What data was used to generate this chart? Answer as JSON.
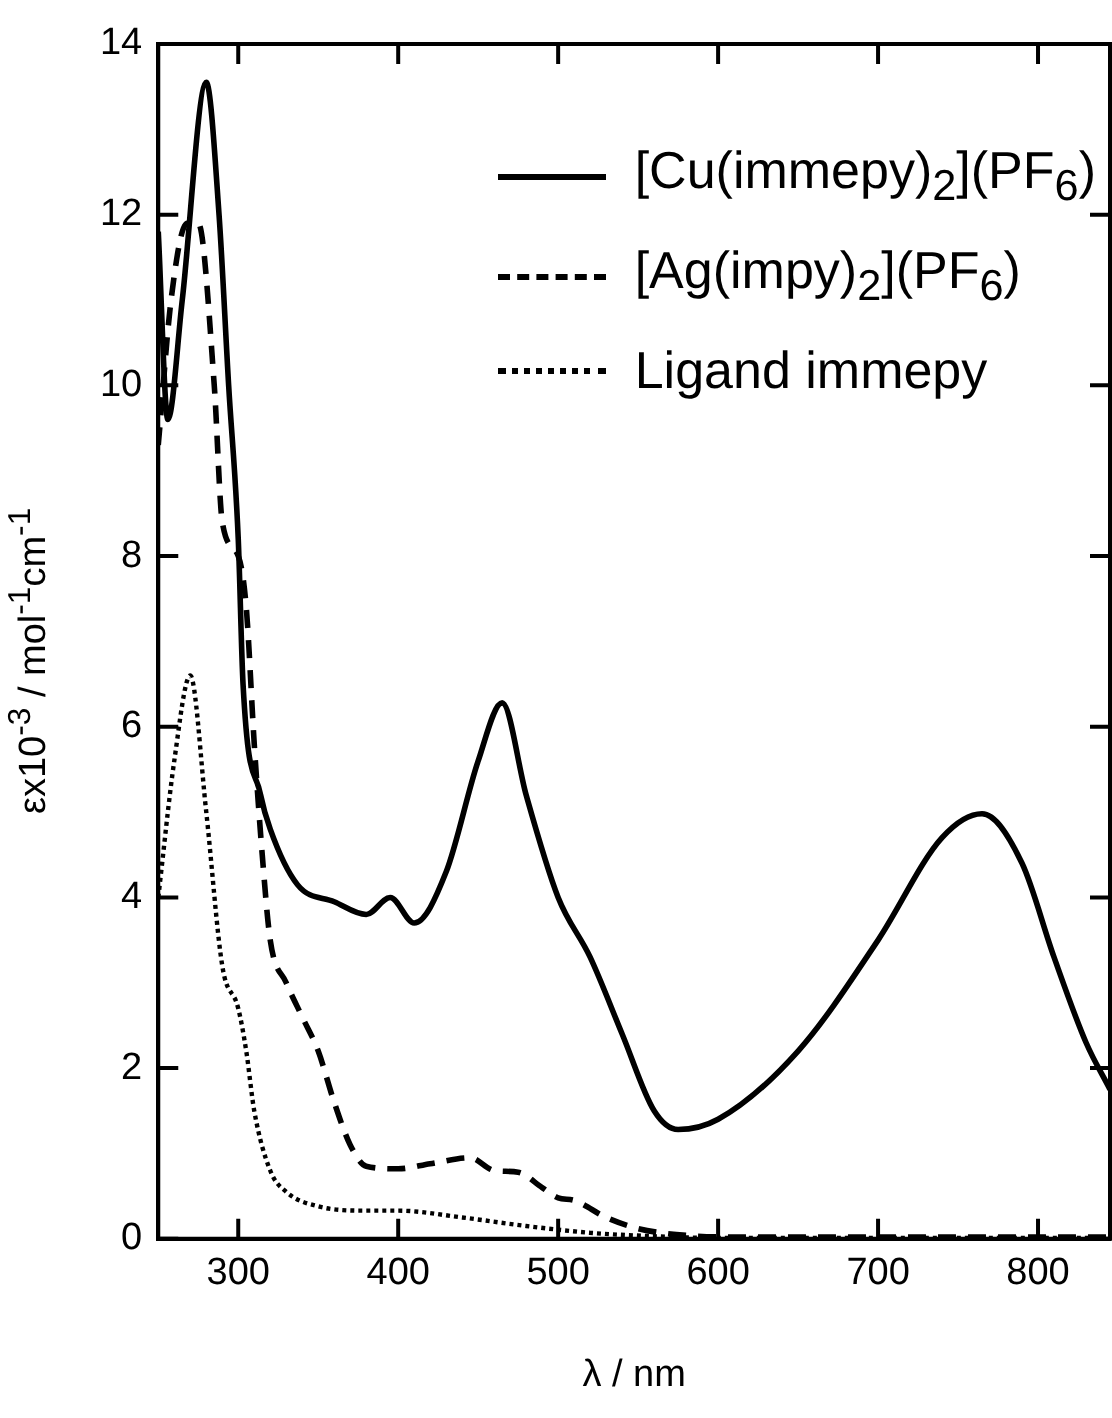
{
  "chart_data": {
    "type": "line",
    "xlabel": "λ / nm",
    "ylabel": "εx10$^{-3}$ / mol$^{-1}$cm$^{-1}$",
    "xlim": [
      250,
      845
    ],
    "xticks": [
      300,
      400,
      500,
      600,
      700,
      800
    ],
    "ylim": [
      0,
      14
    ],
    "yticks": [
      0,
      2,
      4,
      6,
      8,
      10,
      12,
      14
    ],
    "grid": false,
    "legend": "top right",
    "marker": "none",
    "series": [
      {
        "name": "[Cu(immepy)$_{2}$](PF$_{6}$)",
        "color": "#000000",
        "line_style": "solid",
        "x": [
          250,
          256,
          265,
          280,
          288,
          294,
          300,
          303,
          314,
          320,
          337,
          360,
          380,
          395,
          410,
          430,
          450,
          465,
          480,
          500,
          520,
          540,
          560,
          575,
          600,
          650,
          700,
          740,
          765,
          790,
          810,
          830,
          845
        ],
        "values": [
          11.8,
          9.6,
          11.0,
          13.55,
          12.0,
          10.0,
          8.2,
          6.5,
          5.2,
          4.8,
          4.15,
          3.95,
          3.8,
          4.0,
          3.7,
          4.3,
          5.6,
          6.28,
          5.2,
          4.0,
          3.3,
          2.4,
          1.5,
          1.28,
          1.4,
          2.2,
          3.5,
          4.7,
          4.98,
          4.4,
          3.3,
          2.3,
          1.75
        ]
      },
      {
        "name": "[Ag(impy)$_{2}$](PF$_{6}$)",
        "color": "#000000",
        "line_style": "dashed",
        "x": [
          250,
          258,
          268,
          275,
          285,
          290,
          300,
          305,
          310,
          315,
          320,
          330,
          340,
          350,
          360,
          370,
          380,
          400,
          420,
          445,
          460,
          475,
          490,
          500,
          510,
          530,
          550,
          580,
          620,
          845
        ],
        "values": [
          9.3,
          11.0,
          11.9,
          11.9,
          10.0,
          8.4,
          8.0,
          7.4,
          5.8,
          4.5,
          3.5,
          3.0,
          2.6,
          2.2,
          1.6,
          1.1,
          0.85,
          0.82,
          0.88,
          0.95,
          0.8,
          0.78,
          0.6,
          0.48,
          0.45,
          0.25,
          0.12,
          0.04,
          0.02,
          0.02
        ]
      },
      {
        "name": "Ligand immepy",
        "color": "#000000",
        "line_style": "dotted",
        "x": [
          250,
          260,
          270,
          280,
          290,
          300,
          305,
          310,
          320,
          330,
          350,
          380,
          400,
          440,
          480,
          520,
          560,
          600,
          845
        ],
        "values": [
          4.0,
          5.6,
          6.6,
          5.0,
          3.2,
          2.7,
          2.2,
          1.5,
          0.8,
          0.55,
          0.38,
          0.33,
          0.33,
          0.25,
          0.15,
          0.07,
          0.03,
          0.01,
          0.01
        ]
      }
    ]
  }
}
